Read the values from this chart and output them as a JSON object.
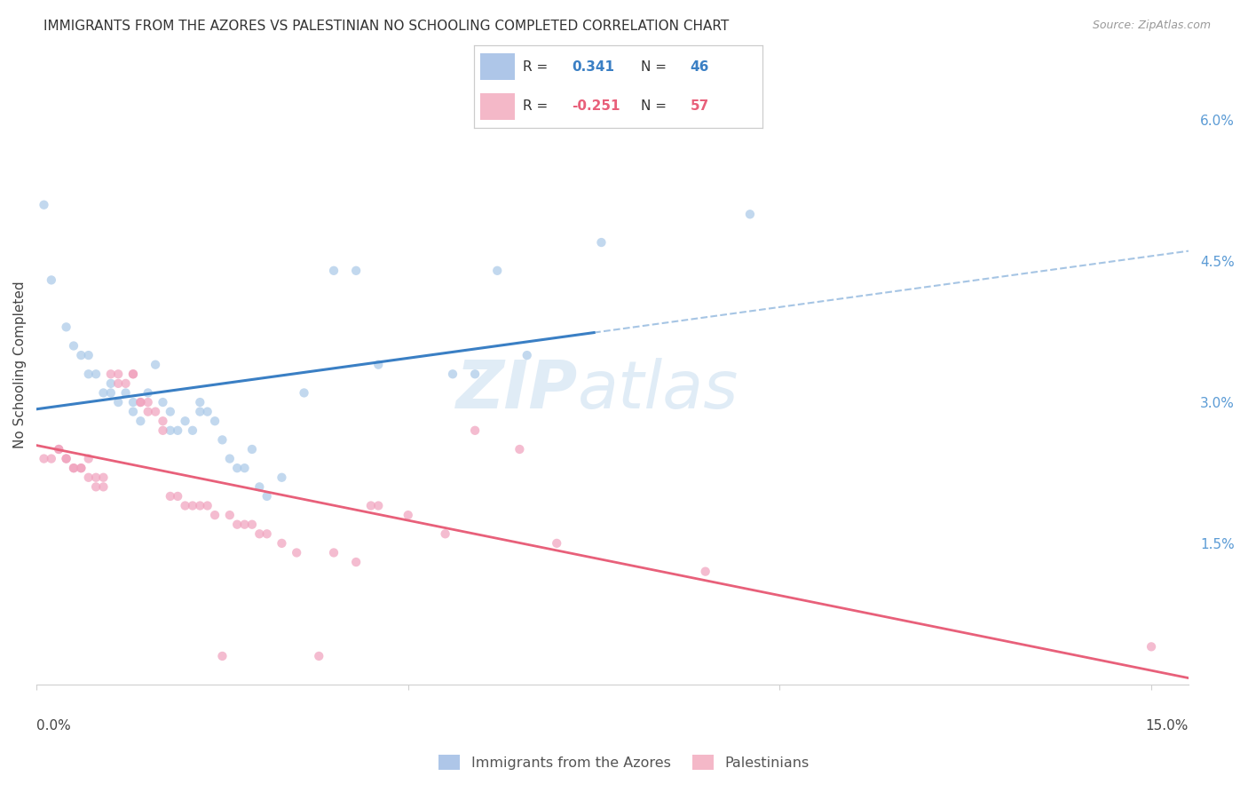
{
  "title": "IMMIGRANTS FROM THE AZORES VS PALESTINIAN NO SCHOOLING COMPLETED CORRELATION CHART",
  "source": "Source: ZipAtlas.com",
  "ylabel": "No Schooling Completed",
  "right_ytick_vals": [
    0.015,
    0.03,
    0.045,
    0.06
  ],
  "right_ytick_labels": [
    "1.5%",
    "3.0%",
    "4.5%",
    "6.0%"
  ],
  "bottom_legend": [
    {
      "label": "Immigrants from the Azores",
      "color": "#aec6e8"
    },
    {
      "label": "Palestinians",
      "color": "#f4b8c8"
    }
  ],
  "azores_scatter": [
    [
      0.001,
      0.051
    ],
    [
      0.002,
      0.043
    ],
    [
      0.004,
      0.038
    ],
    [
      0.005,
      0.036
    ],
    [
      0.006,
      0.035
    ],
    [
      0.007,
      0.035
    ],
    [
      0.007,
      0.033
    ],
    [
      0.008,
      0.033
    ],
    [
      0.009,
      0.031
    ],
    [
      0.01,
      0.031
    ],
    [
      0.01,
      0.032
    ],
    [
      0.011,
      0.03
    ],
    [
      0.012,
      0.031
    ],
    [
      0.013,
      0.03
    ],
    [
      0.013,
      0.029
    ],
    [
      0.014,
      0.028
    ],
    [
      0.015,
      0.031
    ],
    [
      0.016,
      0.034
    ],
    [
      0.017,
      0.03
    ],
    [
      0.018,
      0.029
    ],
    [
      0.018,
      0.027
    ],
    [
      0.019,
      0.027
    ],
    [
      0.02,
      0.028
    ],
    [
      0.021,
      0.027
    ],
    [
      0.022,
      0.029
    ],
    [
      0.022,
      0.03
    ],
    [
      0.023,
      0.029
    ],
    [
      0.024,
      0.028
    ],
    [
      0.025,
      0.026
    ],
    [
      0.026,
      0.024
    ],
    [
      0.027,
      0.023
    ],
    [
      0.028,
      0.023
    ],
    [
      0.029,
      0.025
    ],
    [
      0.03,
      0.021
    ],
    [
      0.031,
      0.02
    ],
    [
      0.033,
      0.022
    ],
    [
      0.036,
      0.031
    ],
    [
      0.04,
      0.044
    ],
    [
      0.043,
      0.044
    ],
    [
      0.046,
      0.034
    ],
    [
      0.056,
      0.033
    ],
    [
      0.059,
      0.033
    ],
    [
      0.062,
      0.044
    ],
    [
      0.066,
      0.035
    ],
    [
      0.076,
      0.047
    ],
    [
      0.096,
      0.05
    ]
  ],
  "palestinians_scatter": [
    [
      0.001,
      0.024
    ],
    [
      0.002,
      0.024
    ],
    [
      0.003,
      0.025
    ],
    [
      0.003,
      0.025
    ],
    [
      0.004,
      0.024
    ],
    [
      0.004,
      0.024
    ],
    [
      0.005,
      0.023
    ],
    [
      0.005,
      0.023
    ],
    [
      0.006,
      0.023
    ],
    [
      0.006,
      0.023
    ],
    [
      0.007,
      0.022
    ],
    [
      0.007,
      0.024
    ],
    [
      0.008,
      0.022
    ],
    [
      0.008,
      0.021
    ],
    [
      0.009,
      0.021
    ],
    [
      0.009,
      0.022
    ],
    [
      0.01,
      0.033
    ],
    [
      0.011,
      0.033
    ],
    [
      0.011,
      0.032
    ],
    [
      0.012,
      0.032
    ],
    [
      0.013,
      0.033
    ],
    [
      0.013,
      0.033
    ],
    [
      0.014,
      0.03
    ],
    [
      0.014,
      0.03
    ],
    [
      0.015,
      0.03
    ],
    [
      0.015,
      0.029
    ],
    [
      0.016,
      0.029
    ],
    [
      0.017,
      0.028
    ],
    [
      0.017,
      0.027
    ],
    [
      0.018,
      0.02
    ],
    [
      0.019,
      0.02
    ],
    [
      0.02,
      0.019
    ],
    [
      0.021,
      0.019
    ],
    [
      0.022,
      0.019
    ],
    [
      0.023,
      0.019
    ],
    [
      0.024,
      0.018
    ],
    [
      0.025,
      0.003
    ],
    [
      0.026,
      0.018
    ],
    [
      0.027,
      0.017
    ],
    [
      0.028,
      0.017
    ],
    [
      0.029,
      0.017
    ],
    [
      0.03,
      0.016
    ],
    [
      0.031,
      0.016
    ],
    [
      0.033,
      0.015
    ],
    [
      0.035,
      0.014
    ],
    [
      0.038,
      0.003
    ],
    [
      0.04,
      0.014
    ],
    [
      0.043,
      0.013
    ],
    [
      0.045,
      0.019
    ],
    [
      0.046,
      0.019
    ],
    [
      0.05,
      0.018
    ],
    [
      0.055,
      0.016
    ],
    [
      0.059,
      0.027
    ],
    [
      0.065,
      0.025
    ],
    [
      0.07,
      0.015
    ],
    [
      0.09,
      0.012
    ],
    [
      0.15,
      0.004
    ]
  ],
  "scatter_alpha": 0.7,
  "scatter_size": 55,
  "azores_color": "#a8c8e8",
  "palestinians_color": "#f0a0bc",
  "trendline_blue": "#3a7fc4",
  "trendline_pink": "#e8607a",
  "watermark_text": "ZIP",
  "watermark_text2": "atlas",
  "bg_color": "#ffffff",
  "grid_color": "#d0d0d0",
  "xlim": [
    0.0,
    0.155
  ],
  "ylim": [
    0.0,
    0.068
  ],
  "title_fontsize": 11,
  "source_fontsize": 9,
  "legend_r1": "R =  0.341   N = 46",
  "legend_r2": "R = -0.251   N = 57",
  "legend_r1_val": "0.341",
  "legend_r1_n": "46",
  "legend_r2_val": "-0.251",
  "legend_r2_n": "57"
}
